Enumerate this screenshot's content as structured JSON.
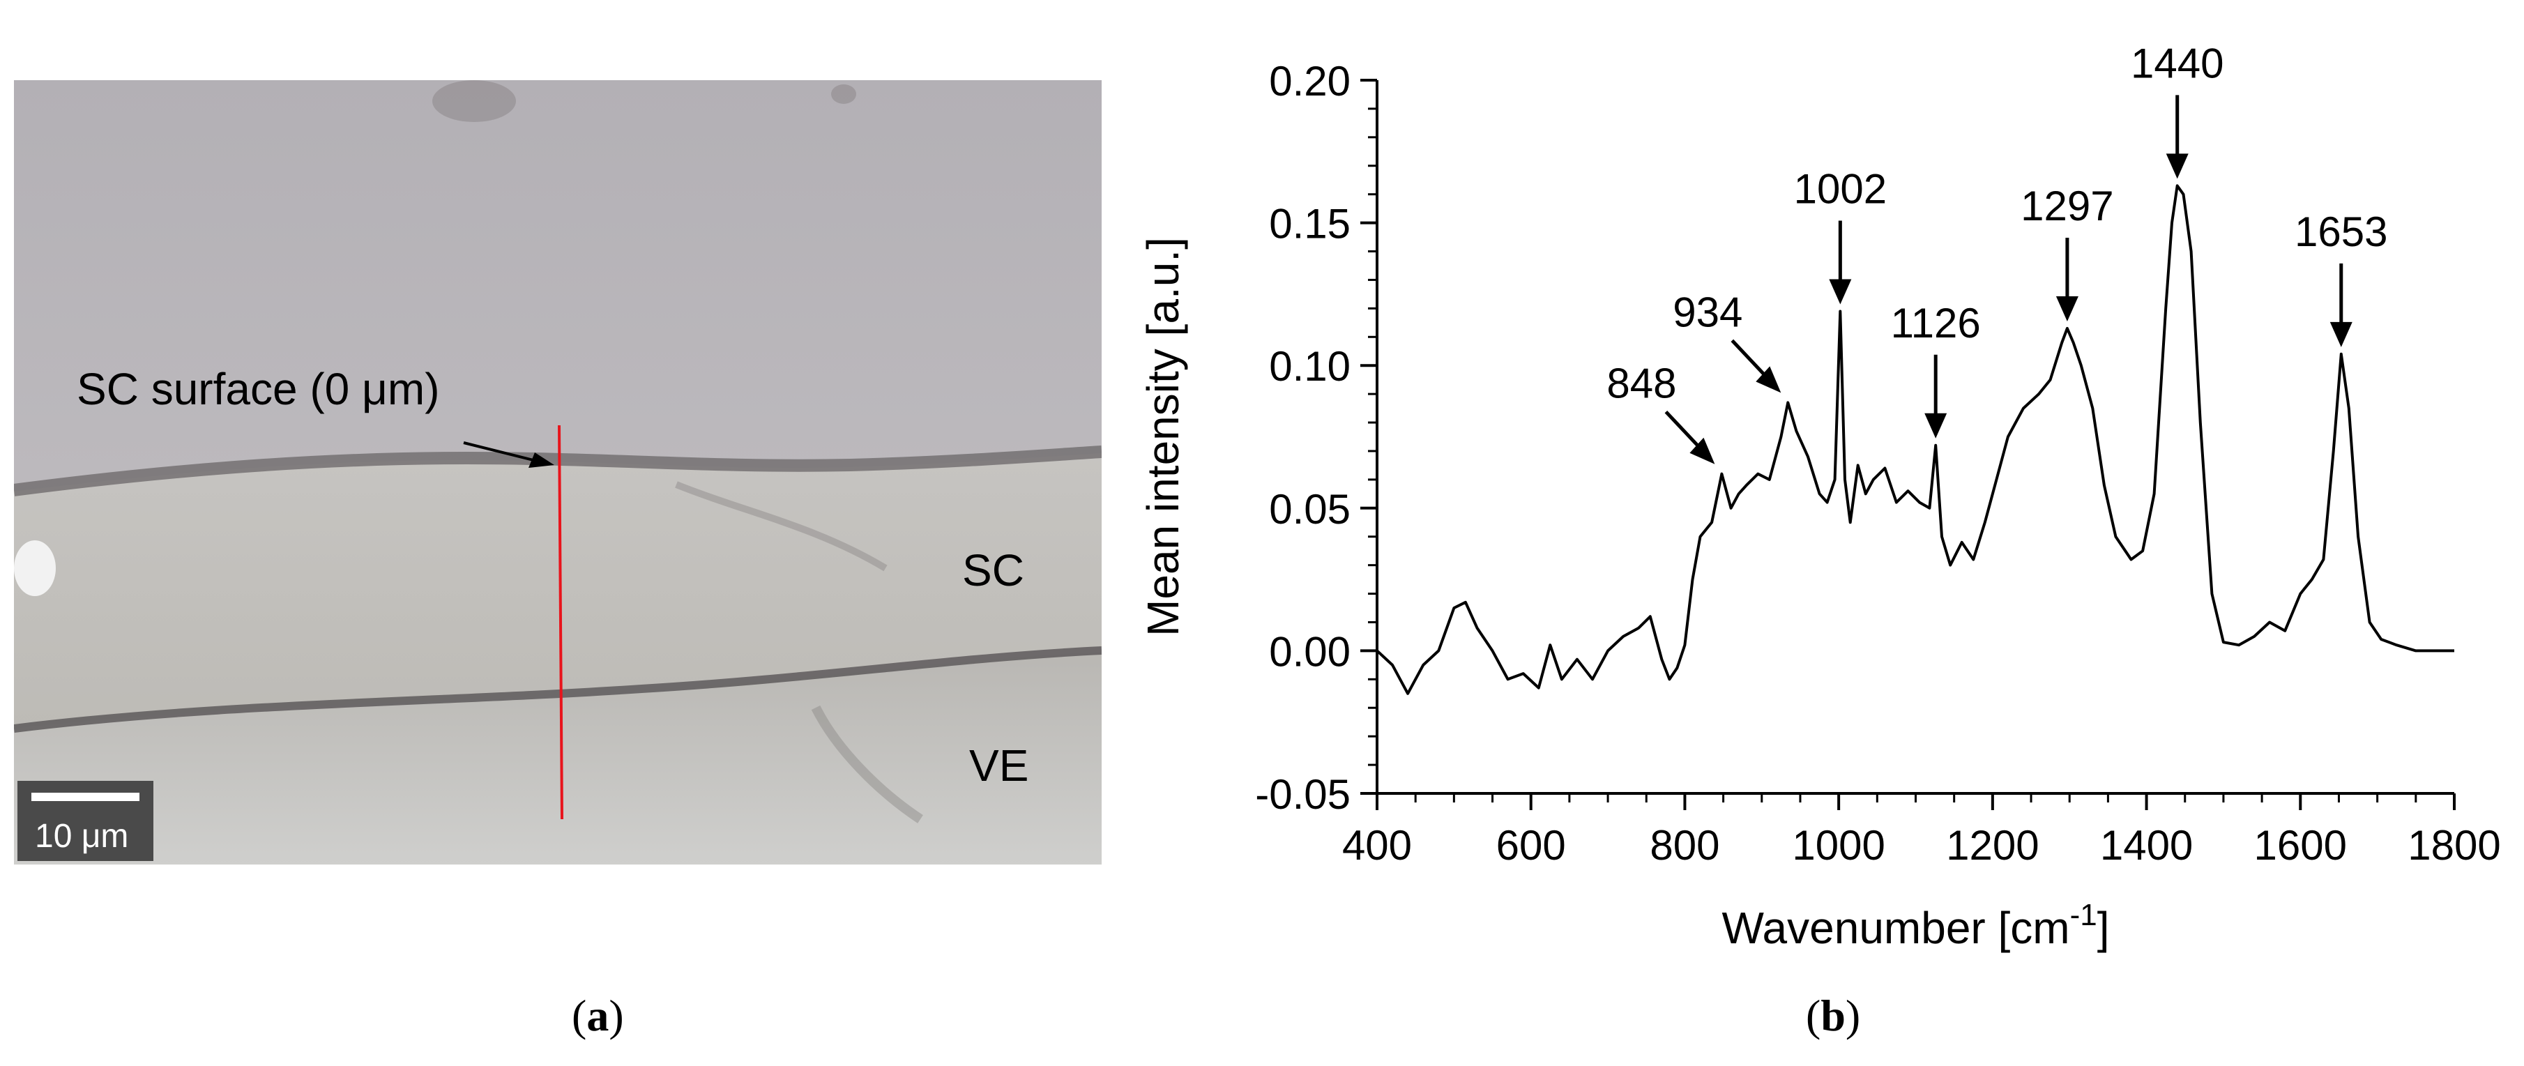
{
  "panel_a": {
    "annotation_surface": "SC surface (0 μm)",
    "layer_sc": "SC",
    "layer_ve": "VE",
    "scale_bar": "10 μm",
    "line_color": "#e8141c"
  },
  "captions": {
    "a_open": "(",
    "a_letter": "a",
    "a_close": ")",
    "b_open": "(",
    "b_letter": "b",
    "b_close": ")"
  },
  "chart_data": {
    "type": "line",
    "title": "",
    "xlabel": "Wavenumber [cm",
    "xlabel_sup": "-1",
    "xlabel_close": "]",
    "ylabel": "Mean intensity [a.u.]",
    "xlim": [
      400,
      1800
    ],
    "ylim": [
      -0.05,
      0.2
    ],
    "xticks": [
      400,
      600,
      800,
      1000,
      1200,
      1400,
      1600,
      1800
    ],
    "yticks": [
      -0.05,
      0.0,
      0.05,
      0.1,
      0.15,
      0.2
    ],
    "ytick_labels": [
      "-0.05",
      "0.00",
      "0.05",
      "0.10",
      "0.15",
      "0.20"
    ],
    "line_color": "#000000",
    "annotations": [
      {
        "label": "848",
        "x": 848,
        "y": 0.062,
        "direction": "diagonal"
      },
      {
        "label": "934",
        "x": 934,
        "y": 0.087,
        "direction": "diagonal"
      },
      {
        "label": "1002",
        "x": 1002,
        "y": 0.119,
        "direction": "down"
      },
      {
        "label": "1126",
        "x": 1126,
        "y": 0.072,
        "direction": "down"
      },
      {
        "label": "1297",
        "x": 1297,
        "y": 0.113,
        "direction": "down"
      },
      {
        "label": "1440",
        "x": 1440,
        "y": 0.163,
        "direction": "down"
      },
      {
        "label": "1653",
        "x": 1653,
        "y": 0.104,
        "direction": "down"
      }
    ],
    "x": [
      400,
      420,
      440,
      460,
      480,
      500,
      515,
      530,
      550,
      570,
      590,
      610,
      625,
      640,
      660,
      680,
      700,
      720,
      740,
      755,
      770,
      780,
      790,
      800,
      810,
      820,
      835,
      848,
      860,
      870,
      880,
      895,
      910,
      925,
      934,
      945,
      960,
      975,
      985,
      995,
      1002,
      1008,
      1015,
      1025,
      1035,
      1045,
      1060,
      1075,
      1090,
      1105,
      1118,
      1126,
      1134,
      1145,
      1160,
      1175,
      1190,
      1205,
      1220,
      1240,
      1260,
      1275,
      1290,
      1297,
      1305,
      1315,
      1330,
      1345,
      1360,
      1380,
      1395,
      1410,
      1425,
      1433,
      1440,
      1448,
      1458,
      1470,
      1485,
      1500,
      1520,
      1540,
      1560,
      1580,
      1600,
      1615,
      1630,
      1643,
      1653,
      1663,
      1675,
      1690,
      1705,
      1725,
      1750,
      1775,
      1800
    ],
    "y": [
      0.0,
      -0.005,
      -0.015,
      -0.005,
      0.0,
      0.015,
      0.017,
      0.008,
      0.0,
      -0.01,
      -0.008,
      -0.013,
      0.002,
      -0.01,
      -0.003,
      -0.01,
      0.0,
      0.005,
      0.008,
      0.012,
      -0.003,
      -0.01,
      -0.006,
      0.002,
      0.025,
      0.04,
      0.045,
      0.062,
      0.05,
      0.055,
      0.058,
      0.062,
      0.06,
      0.075,
      0.087,
      0.077,
      0.068,
      0.055,
      0.052,
      0.06,
      0.119,
      0.06,
      0.045,
      0.065,
      0.055,
      0.06,
      0.064,
      0.052,
      0.056,
      0.052,
      0.05,
      0.072,
      0.04,
      0.03,
      0.038,
      0.032,
      0.045,
      0.06,
      0.075,
      0.085,
      0.09,
      0.095,
      0.108,
      0.113,
      0.108,
      0.1,
      0.085,
      0.058,
      0.04,
      0.032,
      0.035,
      0.055,
      0.12,
      0.15,
      0.163,
      0.16,
      0.14,
      0.08,
      0.02,
      0.003,
      0.002,
      0.005,
      0.01,
      0.007,
      0.02,
      0.025,
      0.032,
      0.07,
      0.104,
      0.085,
      0.04,
      0.01,
      0.004,
      0.002,
      0.0,
      0.0,
      0.0
    ]
  }
}
